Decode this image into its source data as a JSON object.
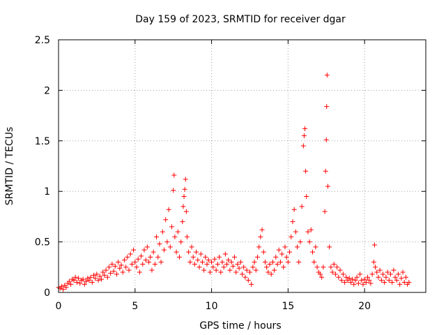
{
  "chart_data": {
    "type": "scatter",
    "title": "Day 159 of 2023, SRMTID for receiver dgar",
    "xlabel": "GPS time / hours",
    "ylabel": "SRMTID / TECUs",
    "xlim": [
      0,
      24
    ],
    "ylim": [
      0,
      2.5
    ],
    "x_ticks": [
      {
        "value": 0,
        "label": "0"
      },
      {
        "value": 5,
        "label": "5"
      },
      {
        "value": 10,
        "label": "10"
      },
      {
        "value": 15,
        "label": "15"
      },
      {
        "value": 20,
        "label": "20"
      }
    ],
    "y_ticks": [
      {
        "value": 0,
        "label": "0"
      },
      {
        "value": 0.5,
        "label": "0.5"
      },
      {
        "value": 1,
        "label": "1"
      },
      {
        "value": 1.5,
        "label": "1.5"
      },
      {
        "value": 2,
        "label": "2"
      },
      {
        "value": 2.5,
        "label": "2.5"
      }
    ],
    "grid": true,
    "marker": "+",
    "color": "#ff0000",
    "series": [
      {
        "name": "SRMTID",
        "points": [
          [
            0.0,
            0.05
          ],
          [
            0.1,
            0.04
          ],
          [
            0.2,
            0.06
          ],
          [
            0.3,
            0.03
          ],
          [
            0.4,
            0.07
          ],
          [
            0.5,
            0.05
          ],
          [
            0.6,
            0.09
          ],
          [
            0.7,
            0.11
          ],
          [
            0.8,
            0.08
          ],
          [
            0.9,
            0.13
          ],
          [
            1.0,
            0.12
          ],
          [
            1.1,
            0.15
          ],
          [
            1.2,
            0.1
          ],
          [
            1.3,
            0.14
          ],
          [
            1.4,
            0.09
          ],
          [
            1.5,
            0.12
          ],
          [
            1.6,
            0.13
          ],
          [
            1.7,
            0.08
          ],
          [
            1.8,
            0.11
          ],
          [
            1.9,
            0.14
          ],
          [
            2.0,
            0.12
          ],
          [
            2.1,
            0.15
          ],
          [
            2.2,
            0.1
          ],
          [
            2.3,
            0.17
          ],
          [
            2.4,
            0.14
          ],
          [
            2.5,
            0.18
          ],
          [
            2.6,
            0.12
          ],
          [
            2.7,
            0.16
          ],
          [
            2.8,
            0.13
          ],
          [
            2.9,
            0.2
          ],
          [
            3.0,
            0.17
          ],
          [
            3.1,
            0.22
          ],
          [
            3.2,
            0.15
          ],
          [
            3.3,
            0.25
          ],
          [
            3.4,
            0.19
          ],
          [
            3.5,
            0.28
          ],
          [
            3.6,
            0.21
          ],
          [
            3.7,
            0.26
          ],
          [
            3.8,
            0.18
          ],
          [
            3.9,
            0.3
          ],
          [
            4.0,
            0.24
          ],
          [
            4.1,
            0.27
          ],
          [
            4.2,
            0.2
          ],
          [
            4.3,
            0.32
          ],
          [
            4.4,
            0.25
          ],
          [
            4.5,
            0.35
          ],
          [
            4.6,
            0.22
          ],
          [
            4.7,
            0.38
          ],
          [
            4.8,
            0.28
          ],
          [
            4.9,
            0.42
          ],
          [
            5.0,
            0.3
          ],
          [
            5.1,
            0.25
          ],
          [
            5.2,
            0.33
          ],
          [
            5.3,
            0.2
          ],
          [
            5.4,
            0.36
          ],
          [
            5.5,
            0.28
          ],
          [
            5.6,
            0.42
          ],
          [
            5.7,
            0.32
          ],
          [
            5.8,
            0.45
          ],
          [
            5.9,
            0.3
          ],
          [
            6.0,
            0.35
          ],
          [
            6.1,
            0.22
          ],
          [
            6.2,
            0.4
          ],
          [
            6.3,
            0.28
          ],
          [
            6.4,
            0.55
          ],
          [
            6.5,
            0.35
          ],
          [
            6.6,
            0.48
          ],
          [
            6.7,
            0.3
          ],
          [
            6.8,
            0.6
          ],
          [
            6.9,
            0.42
          ],
          [
            7.0,
            0.72
          ],
          [
            7.1,
            0.5
          ],
          [
            7.2,
            0.82
          ],
          [
            7.3,
            0.45
          ],
          [
            7.4,
            0.65
          ],
          [
            7.5,
            1.01
          ],
          [
            7.55,
            1.16
          ],
          [
            7.6,
            0.55
          ],
          [
            7.7,
            0.4
          ],
          [
            7.8,
            0.6
          ],
          [
            7.9,
            0.35
          ],
          [
            8.0,
            0.5
          ],
          [
            8.1,
            0.7
          ],
          [
            8.15,
            0.85
          ],
          [
            8.2,
            0.95
          ],
          [
            8.25,
            1.02
          ],
          [
            8.3,
            1.12
          ],
          [
            8.35,
            0.8
          ],
          [
            8.4,
            0.55
          ],
          [
            8.5,
            0.4
          ],
          [
            8.6,
            0.3
          ],
          [
            8.7,
            0.45
          ],
          [
            8.8,
            0.35
          ],
          [
            8.9,
            0.28
          ],
          [
            9.0,
            0.4
          ],
          [
            9.1,
            0.32
          ],
          [
            9.2,
            0.25
          ],
          [
            9.3,
            0.38
          ],
          [
            9.4,
            0.3
          ],
          [
            9.5,
            0.22
          ],
          [
            9.6,
            0.35
          ],
          [
            9.7,
            0.28
          ],
          [
            9.8,
            0.32
          ],
          [
            9.9,
            0.2
          ],
          [
            10.0,
            0.3
          ],
          [
            10.1,
            0.25
          ],
          [
            10.2,
            0.33
          ],
          [
            10.3,
            0.22
          ],
          [
            10.4,
            0.28
          ],
          [
            10.5,
            0.35
          ],
          [
            10.6,
            0.2
          ],
          [
            10.7,
            0.3
          ],
          [
            10.8,
            0.25
          ],
          [
            10.9,
            0.38
          ],
          [
            11.0,
            0.28
          ],
          [
            11.1,
            0.32
          ],
          [
            11.2,
            0.22
          ],
          [
            11.3,
            0.3
          ],
          [
            11.4,
            0.26
          ],
          [
            11.5,
            0.35
          ],
          [
            11.6,
            0.2
          ],
          [
            11.7,
            0.28
          ],
          [
            11.8,
            0.24
          ],
          [
            11.9,
            0.3
          ],
          [
            12.0,
            0.18
          ],
          [
            12.1,
            0.25
          ],
          [
            12.2,
            0.15
          ],
          [
            12.3,
            0.22
          ],
          [
            12.4,
            0.12
          ],
          [
            12.5,
            0.2
          ],
          [
            12.6,
            0.08
          ],
          [
            12.7,
            0.25
          ],
          [
            12.8,
            0.3
          ],
          [
            12.9,
            0.22
          ],
          [
            13.0,
            0.35
          ],
          [
            13.1,
            0.45
          ],
          [
            13.2,
            0.55
          ],
          [
            13.3,
            0.62
          ],
          [
            13.4,
            0.4
          ],
          [
            13.5,
            0.3
          ],
          [
            13.6,
            0.25
          ],
          [
            13.7,
            0.2
          ],
          [
            13.8,
            0.28
          ],
          [
            13.9,
            0.18
          ],
          [
            14.0,
            0.3
          ],
          [
            14.1,
            0.22
          ],
          [
            14.2,
            0.35
          ],
          [
            14.3,
            0.28
          ],
          [
            14.4,
            0.42
          ],
          [
            14.5,
            0.3
          ],
          [
            14.6,
            0.38
          ],
          [
            14.7,
            0.25
          ],
          [
            14.8,
            0.45
          ],
          [
            14.9,
            0.35
          ],
          [
            15.0,
            0.3
          ],
          [
            15.1,
            0.4
          ],
          [
            15.2,
            0.55
          ],
          [
            15.3,
            0.7
          ],
          [
            15.4,
            0.82
          ],
          [
            15.5,
            0.6
          ],
          [
            15.6,
            0.45
          ],
          [
            15.7,
            0.3
          ],
          [
            15.8,
            0.5
          ],
          [
            15.9,
            0.85
          ],
          [
            16.0,
            1.45
          ],
          [
            16.05,
            1.55
          ],
          [
            16.1,
            1.62
          ],
          [
            16.15,
            1.2
          ],
          [
            16.2,
            0.95
          ],
          [
            16.3,
            0.6
          ],
          [
            16.4,
            0.5
          ],
          [
            16.5,
            0.62
          ],
          [
            16.6,
            0.4
          ],
          [
            16.7,
            0.3
          ],
          [
            16.8,
            0.45
          ],
          [
            16.9,
            0.25
          ],
          [
            17.0,
            0.2
          ],
          [
            17.1,
            0.18
          ],
          [
            17.2,
            0.15
          ],
          [
            17.3,
            0.25
          ],
          [
            17.4,
            0.8
          ],
          [
            17.45,
            1.2
          ],
          [
            17.5,
            1.51
          ],
          [
            17.52,
            1.84
          ],
          [
            17.55,
            2.15
          ],
          [
            17.6,
            1.05
          ],
          [
            17.7,
            0.45
          ],
          [
            17.8,
            0.25
          ],
          [
            17.9,
            0.2
          ],
          [
            18.0,
            0.28
          ],
          [
            18.1,
            0.18
          ],
          [
            18.2,
            0.25
          ],
          [
            18.3,
            0.15
          ],
          [
            18.4,
            0.22
          ],
          [
            18.5,
            0.12
          ],
          [
            18.6,
            0.18
          ],
          [
            18.7,
            0.1
          ],
          [
            18.8,
            0.15
          ],
          [
            18.9,
            0.12
          ],
          [
            19.0,
            0.14
          ],
          [
            19.1,
            0.1
          ],
          [
            19.2,
            0.13
          ],
          [
            19.3,
            0.08
          ],
          [
            19.4,
            0.12
          ],
          [
            19.5,
            0.15
          ],
          [
            19.6,
            0.09
          ],
          [
            19.7,
            0.18
          ],
          [
            19.8,
            0.12
          ],
          [
            19.9,
            0.08
          ],
          [
            20.0,
            0.13
          ],
          [
            20.1,
            0.1
          ],
          [
            20.2,
            0.15
          ],
          [
            20.3,
            0.12
          ],
          [
            20.4,
            0.09
          ],
          [
            20.5,
            0.18
          ],
          [
            20.6,
            0.3
          ],
          [
            20.65,
            0.47
          ],
          [
            20.7,
            0.25
          ],
          [
            20.8,
            0.2
          ],
          [
            20.9,
            0.15
          ],
          [
            21.0,
            0.22
          ],
          [
            21.1,
            0.12
          ],
          [
            21.2,
            0.18
          ],
          [
            21.3,
            0.1
          ],
          [
            21.4,
            0.15
          ],
          [
            21.5,
            0.2
          ],
          [
            21.6,
            0.12
          ],
          [
            21.7,
            0.18
          ],
          [
            21.8,
            0.1
          ],
          [
            21.9,
            0.22
          ],
          [
            22.0,
            0.15
          ],
          [
            22.1,
            0.12
          ],
          [
            22.2,
            0.18
          ],
          [
            22.3,
            0.08
          ],
          [
            22.4,
            0.14
          ],
          [
            22.5,
            0.2
          ],
          [
            22.6,
            0.1
          ],
          [
            22.7,
            0.15
          ],
          [
            22.8,
            0.08
          ],
          [
            22.9,
            0.1
          ]
        ]
      }
    ]
  }
}
